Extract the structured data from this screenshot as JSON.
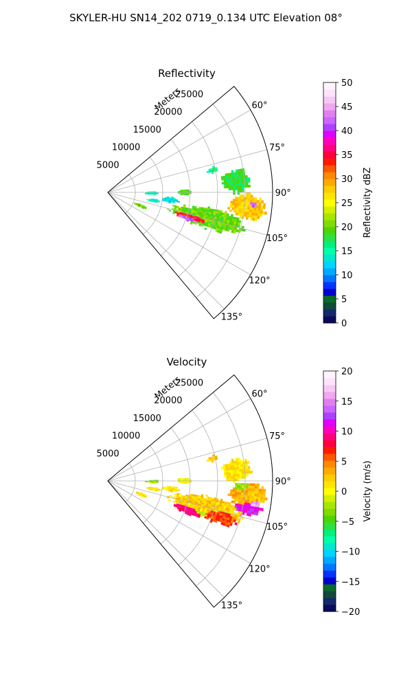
{
  "figure": {
    "title": "SKYLER-HU  SN14_202  0719_0.134 UTC Elevation 08°"
  },
  "chart_data": [
    {
      "type": "heatmap",
      "projection": "polar-sector",
      "title": "Reflectivity",
      "range_axis_label": "Meters",
      "range_ticks": [
        "5000",
        "10000",
        "15000",
        "20000",
        "25000"
      ],
      "range_lim": [
        0,
        30000
      ],
      "azimuth_ticks": [
        "60°",
        "75°",
        "90°",
        "105°",
        "120°",
        "135°"
      ],
      "azimuth_lim_deg": [
        50,
        140
      ],
      "grid": true,
      "colorbar": {
        "label": "Reflectivity dBZ",
        "ticks": [
          "0",
          "5",
          "10",
          "15",
          "20",
          "25",
          "30",
          "35",
          "40",
          "45",
          "50"
        ],
        "vmin": 0,
        "vmax": 50,
        "colors": [
          "#0a0a5a",
          "#14286a",
          "#0f4a3a",
          "#0a6a2a",
          "#0000cc",
          "#0033ff",
          "#0077ff",
          "#00aaff",
          "#00d4ff",
          "#00e8cc",
          "#00ffaa",
          "#00f07a",
          "#30e040",
          "#50d400",
          "#80dc00",
          "#a8e600",
          "#d4f000",
          "#ffff00",
          "#ffe600",
          "#ffcc00",
          "#ffaa00",
          "#ff8800",
          "#ff5500",
          "#ff1a00",
          "#ff0040",
          "#ff0080",
          "#ff00c0",
          "#e000ff",
          "#b040ff",
          "#cc66ff",
          "#e080f0",
          "#f0a8f0",
          "#f8c8f4",
          "#fce4fa",
          "#fff4fc"
        ]
      },
      "regions": [
        {
          "az_center": 104.5,
          "r_center": 18500,
          "az_halfwidth": 5.5,
          "r_halfwidth": 6500,
          "value": 20
        },
        {
          "az_center": 106,
          "r_center": 17000,
          "az_halfwidth": 3.2,
          "r_halfwidth": 4500,
          "value": 34
        },
        {
          "az_center": 108,
          "r_center": 15500,
          "az_halfwidth": 1.5,
          "r_halfwidth": 2200,
          "value": 42
        },
        {
          "az_center": 96,
          "r_center": 25500,
          "az_halfwidth": 5,
          "r_halfwidth": 3200,
          "value": 28
        },
        {
          "az_center": 95,
          "r_center": 26500,
          "az_halfwidth": 2,
          "r_halfwidth": 1400,
          "value": 42
        },
        {
          "az_center": 85,
          "r_center": 23500,
          "az_halfwidth": 5,
          "r_halfwidth": 2500,
          "value": 18
        },
        {
          "az_center": 78,
          "r_center": 19500,
          "az_halfwidth": 1.5,
          "r_halfwidth": 900,
          "value": 16
        },
        {
          "az_center": 112,
          "r_center": 6500,
          "az_halfwidth": 2.5,
          "r_halfwidth": 1300,
          "value": 20
        },
        {
          "az_center": 112.5,
          "r_center": 6300,
          "az_halfwidth": 1,
          "r_halfwidth": 600,
          "value": 33
        },
        {
          "az_center": 91,
          "r_center": 8000,
          "az_halfwidth": 2,
          "r_halfwidth": 1300,
          "value": 14
        },
        {
          "az_center": 97,
          "r_center": 11500,
          "az_halfwidth": 2.5,
          "r_halfwidth": 1500,
          "value": 13
        },
        {
          "az_center": 90,
          "r_center": 14000,
          "az_halfwidth": 2,
          "r_halfwidth": 1200,
          "value": 19
        },
        {
          "az_center": 100,
          "r_center": 8500,
          "az_halfwidth": 2,
          "r_halfwidth": 1200,
          "value": 14
        }
      ]
    },
    {
      "type": "heatmap",
      "projection": "polar-sector",
      "title": "Velocity",
      "range_axis_label": "Meters",
      "range_ticks": [
        "5000",
        "10000",
        "15000",
        "20000",
        "25000"
      ],
      "range_lim": [
        0,
        30000
      ],
      "azimuth_ticks": [
        "60°",
        "75°",
        "90°",
        "105°",
        "120°",
        "135°"
      ],
      "azimuth_lim_deg": [
        50,
        140
      ],
      "grid": true,
      "colorbar": {
        "label": "Velocity (m/s)",
        "ticks": [
          "−20",
          "−15",
          "−10",
          "−5",
          "0",
          "5",
          "10",
          "15",
          "20"
        ],
        "vmin": -20,
        "vmax": 20,
        "colors": [
          "#0a0a5a",
          "#14286a",
          "#0f4a3a",
          "#0a6a2a",
          "#0000cc",
          "#0033ff",
          "#0077ff",
          "#00aaff",
          "#00d4ff",
          "#00e8cc",
          "#00ffaa",
          "#00f07a",
          "#30e040",
          "#50d400",
          "#80dc00",
          "#a8e600",
          "#d4f000",
          "#ffff00",
          "#ffe600",
          "#ffcc00",
          "#ffaa00",
          "#ff8800",
          "#ff5500",
          "#ff1a00",
          "#ff0040",
          "#ff0080",
          "#ff00c0",
          "#e000ff",
          "#b040ff",
          "#cc66ff",
          "#e080f0",
          "#f0a8f0",
          "#f8c8f4",
          "#fce4fa",
          "#fff4fc"
        ]
      },
      "regions": [
        {
          "az_center": 104.5,
          "r_center": 18500,
          "az_halfwidth": 5.5,
          "r_halfwidth": 6500,
          "value": 2
        },
        {
          "az_center": 107,
          "r_center": 21000,
          "az_halfwidth": 4,
          "r_halfwidth": 3500,
          "value": 6
        },
        {
          "az_center": 110,
          "r_center": 15500,
          "az_halfwidth": 2.5,
          "r_halfwidth": 2500,
          "value": 9
        },
        {
          "az_center": 101,
          "r_center": 26000,
          "az_halfwidth": 2.5,
          "r_halfwidth": 2500,
          "value": 11
        },
        {
          "az_center": 99,
          "r_center": 27000,
          "az_halfwidth": 1.2,
          "r_halfwidth": 1200,
          "value": 16
        },
        {
          "az_center": 96,
          "r_center": 25500,
          "az_halfwidth": 5,
          "r_halfwidth": 3200,
          "value": 3
        },
        {
          "az_center": 93,
          "r_center": 24500,
          "az_halfwidth": 2,
          "r_halfwidth": 1500,
          "value": -3
        },
        {
          "az_center": 85,
          "r_center": 23500,
          "az_halfwidth": 5,
          "r_halfwidth": 2500,
          "value": 1
        },
        {
          "az_center": 78,
          "r_center": 19500,
          "az_halfwidth": 1.5,
          "r_halfwidth": 900,
          "value": 2
        },
        {
          "az_center": 112,
          "r_center": 6500,
          "az_halfwidth": 2.5,
          "r_halfwidth": 1300,
          "value": 1
        },
        {
          "az_center": 91,
          "r_center": 8000,
          "az_halfwidth": 2,
          "r_halfwidth": 1300,
          "value": -3
        },
        {
          "az_center": 97,
          "r_center": 11500,
          "az_halfwidth": 2.5,
          "r_halfwidth": 1500,
          "value": 1
        },
        {
          "az_center": 90,
          "r_center": 14000,
          "az_halfwidth": 2,
          "r_halfwidth": 1200,
          "value": 0
        },
        {
          "az_center": 100,
          "r_center": 8500,
          "az_halfwidth": 2,
          "r_halfwidth": 1200,
          "value": 1
        },
        {
          "az_center": 109,
          "r_center": 18000,
          "az_halfwidth": 1.5,
          "r_halfwidth": 1500,
          "value": -2
        }
      ]
    }
  ]
}
